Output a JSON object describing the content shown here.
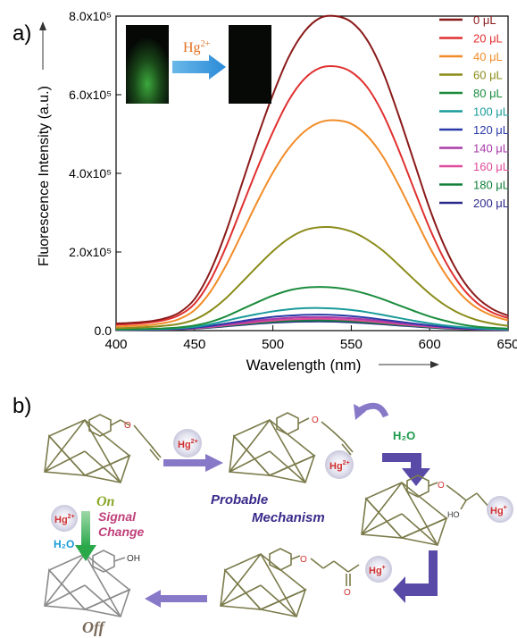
{
  "panels": {
    "a": "a)",
    "b": "b)"
  },
  "chart_data": {
    "type": "line",
    "xlabel": "Wavelength (nm)",
    "ylabel": "Fluorescence Intensity (a.u.)",
    "xlim": [
      400,
      650
    ],
    "ylim": [
      0,
      800000
    ],
    "x_ticks": [
      400,
      450,
      500,
      550,
      600,
      650
    ],
    "y_ticks": [
      {
        "value": 0,
        "label": "0.0"
      },
      {
        "value": 200000,
        "label": "2.0x10⁵"
      },
      {
        "value": 400000,
        "label": "4.0x10⁵"
      },
      {
        "value": 600000,
        "label": "6.0x10⁵"
      },
      {
        "value": 800000,
        "label": "8.0x10⁵"
      }
    ],
    "legend_position": "top-right",
    "x": [
      400,
      410,
      420,
      430,
      440,
      450,
      460,
      470,
      480,
      490,
      500,
      510,
      520,
      530,
      540,
      550,
      560,
      570,
      580,
      590,
      600,
      610,
      620,
      630,
      640,
      650
    ],
    "series": [
      {
        "name": "0 μL",
        "color": "#8b1a1a",
        "values": [
          18000,
          20000,
          23000,
          30000,
          45000,
          80000,
          150000,
          250000,
          370000,
          490000,
          600000,
          695000,
          760000,
          795000,
          800000,
          785000,
          740000,
          660000,
          550000,
          430000,
          310000,
          210000,
          135000,
          85000,
          55000,
          38000
        ]
      },
      {
        "name": "20 μL",
        "color": "#e03030",
        "values": [
          15000,
          17000,
          20000,
          26000,
          39000,
          68000,
          127000,
          212000,
          312000,
          412000,
          505000,
          585000,
          640000,
          668000,
          672000,
          658000,
          620000,
          553000,
          462000,
          360000,
          260000,
          176000,
          113000,
          71000,
          46000,
          32000
        ]
      },
      {
        "name": "40 μL",
        "color": "#f28c28",
        "values": [
          10000,
          12000,
          14000,
          19000,
          29000,
          52000,
          98000,
          165000,
          245000,
          327000,
          402000,
          463000,
          506000,
          530000,
          535000,
          526000,
          496000,
          444000,
          372000,
          292000,
          212000,
          144000,
          92000,
          58000,
          38000,
          26000
        ]
      },
      {
        "name": "60 μL",
        "color": "#8b8b1a",
        "values": [
          6000,
          7000,
          9000,
          12000,
          17000,
          28000,
          50000,
          82000,
          122000,
          163000,
          202000,
          234000,
          255000,
          263000,
          262000,
          252000,
          232000,
          204000,
          168000,
          130000,
          94000,
          64000,
          42000,
          27000,
          18000,
          12000
        ]
      },
      {
        "name": "80 μL",
        "color": "#1a8c3c",
        "values": [
          3000,
          3500,
          4200,
          5500,
          8000,
          13000,
          22000,
          36000,
          54000,
          72000,
          89000,
          102000,
          109000,
          111000,
          109000,
          103000,
          93000,
          80000,
          65000,
          50000,
          36000,
          25000,
          16000,
          10000,
          7000,
          5000
        ]
      },
      {
        "name": "100 μL",
        "color": "#1a9a9a",
        "values": [
          2500,
          2800,
          3300,
          4200,
          6000,
          9500,
          16000,
          25000,
          34000,
          42000,
          49000,
          54000,
          57000,
          57500,
          56000,
          52500,
          47000,
          40000,
          32500,
          25000,
          18500,
          13000,
          9000,
          6000,
          4200,
          3200
        ]
      },
      {
        "name": "120 μL",
        "color": "#2a3aa8",
        "values": [
          2200,
          2400,
          2800,
          3500,
          5000,
          7500,
          12000,
          18000,
          24000,
          30000,
          35000,
          38000,
          40000,
          40500,
          39500,
          37000,
          33000,
          28000,
          23000,
          18000,
          13500,
          9500,
          6500,
          4500,
          3300,
          2600
        ]
      },
      {
        "name": "140 μL",
        "color": "#a83aa8",
        "values": [
          2000,
          2200,
          2600,
          3200,
          4500,
          6800,
          10500,
          15500,
          20500,
          25500,
          29500,
          32500,
          34000,
          34500,
          33500,
          31500,
          28000,
          24000,
          19500,
          15500,
          11500,
          8200,
          5700,
          4000,
          3000,
          2400
        ]
      },
      {
        "name": "160 μL",
        "color": "#e04a9a",
        "values": [
          1800,
          2000,
          2300,
          2900,
          4000,
          6000,
          9200,
          13500,
          18000,
          22000,
          25500,
          28000,
          29500,
          30000,
          29000,
          27000,
          24000,
          20500,
          16800,
          13200,
          9800,
          7000,
          4900,
          3500,
          2600,
          2100
        ]
      },
      {
        "name": "180 μL",
        "color": "#12803a",
        "values": [
          1700,
          1900,
          2200,
          2700,
          3700,
          5500,
          8300,
          12000,
          16000,
          19500,
          22500,
          24500,
          25800,
          26000,
          25200,
          23500,
          21000,
          18000,
          14800,
          11600,
          8600,
          6200,
          4400,
          3200,
          2400,
          1900
        ]
      },
      {
        "name": "200 μL",
        "color": "#2a2a8c",
        "values": [
          1500,
          1700,
          2000,
          2500,
          3400,
          5000,
          7500,
          10800,
          14300,
          17500,
          20200,
          22000,
          23000,
          23300,
          22600,
          21000,
          18800,
          16100,
          13200,
          10400,
          7700,
          5500,
          3900,
          2800,
          2100,
          1700
        ]
      }
    ]
  },
  "inset": {
    "label": "Hg",
    "sup": "2+"
  },
  "scheme": {
    "state_on": "On",
    "state_off": "Off",
    "signal_change_line1": "Signal",
    "signal_change_line2": "Change",
    "mechanism_line1": "Probable",
    "mechanism_line2": "Mechanism",
    "h2o_top": "H₂O",
    "h2o_left": "H₂O",
    "hg_reagent": "Hg",
    "hg_reagent_sup": "2+",
    "hg_bound": "Hg",
    "hg_bound_sup": "2+",
    "hg_left": "Hg",
    "hg_left_sup": "2+",
    "hg_enol": "Hg",
    "hg_enol_sup": "+",
    "hg_ketone": "Hg",
    "hg_ketone_sup": "+",
    "oh_label": "OH",
    "ho_label": "HO",
    "o_label": "O"
  }
}
